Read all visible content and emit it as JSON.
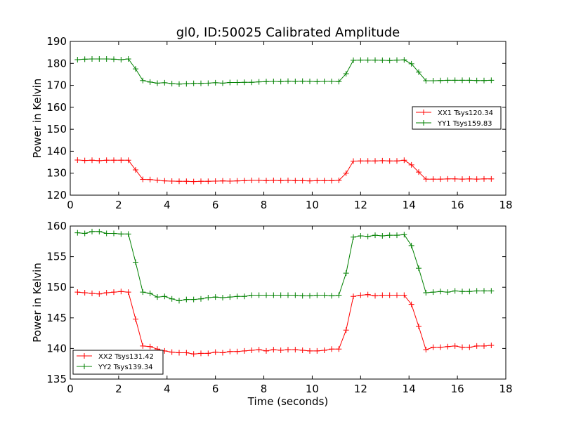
{
  "figure": {
    "title": "gl0, ID:50025 Calibrated Amplitude",
    "xlabel": "Time (seconds)"
  },
  "chart_data": [
    {
      "type": "line",
      "title": "gl0, ID:50025 Calibrated Amplitude",
      "xlabel": "",
      "ylabel": "Power in Kelvin",
      "xlim": [
        0,
        18
      ],
      "ylim": [
        120,
        190
      ],
      "xticks": [
        "0",
        "2",
        "4",
        "6",
        "8",
        "10",
        "12",
        "14",
        "16",
        "18"
      ],
      "yticks": [
        "120",
        "130",
        "140",
        "150",
        "160",
        "170",
        "180",
        "190"
      ],
      "grid": false,
      "legend_position": "center-right",
      "marker": "+",
      "x": [
        0.3,
        0.6,
        0.9,
        1.2,
        1.5,
        1.8,
        2.1,
        2.4,
        2.7,
        3.0,
        3.3,
        3.6,
        3.9,
        4.2,
        4.5,
        4.8,
        5.1,
        5.4,
        5.7,
        6.0,
        6.3,
        6.6,
        6.9,
        7.2,
        7.5,
        7.8,
        8.1,
        8.4,
        8.7,
        9.0,
        9.3,
        9.6,
        9.9,
        10.2,
        10.5,
        10.8,
        11.1,
        11.4,
        11.7,
        12.0,
        12.3,
        12.6,
        12.9,
        13.2,
        13.5,
        13.8,
        14.1,
        14.4,
        14.7,
        15.0,
        15.3,
        15.6,
        15.9,
        16.2,
        16.5,
        16.8,
        17.1,
        17.4
      ],
      "series": [
        {
          "name": "XX1 Tsys120.34",
          "color": "#ff0000",
          "values": [
            136.0,
            135.8,
            135.9,
            135.7,
            135.9,
            135.9,
            135.9,
            135.9,
            131.5,
            127.2,
            127.1,
            126.8,
            126.5,
            126.4,
            126.3,
            126.3,
            126.2,
            126.3,
            126.3,
            126.4,
            126.5,
            126.4,
            126.5,
            126.6,
            126.7,
            126.7,
            126.6,
            126.7,
            126.6,
            126.7,
            126.6,
            126.6,
            126.5,
            126.6,
            126.6,
            126.6,
            126.7,
            130.0,
            135.5,
            135.6,
            135.6,
            135.6,
            135.7,
            135.6,
            135.6,
            135.9,
            133.8,
            130.5,
            127.3,
            127.3,
            127.3,
            127.4,
            127.4,
            127.3,
            127.4,
            127.3,
            127.4,
            127.4
          ]
        },
        {
          "name": "YY1 Tsys159.83",
          "color": "#008000",
          "values": [
            181.7,
            181.9,
            182.0,
            182.0,
            182.0,
            181.9,
            181.7,
            182.0,
            177.5,
            172.2,
            171.5,
            171.0,
            171.2,
            170.8,
            170.6,
            170.7,
            170.9,
            170.9,
            171.0,
            171.2,
            171.0,
            171.3,
            171.3,
            171.4,
            171.4,
            171.6,
            171.7,
            171.8,
            171.7,
            171.9,
            171.8,
            171.9,
            171.8,
            171.7,
            171.8,
            171.8,
            171.7,
            175.3,
            181.4,
            181.5,
            181.5,
            181.5,
            181.4,
            181.3,
            181.5,
            181.6,
            179.8,
            176.0,
            172.1,
            172.1,
            172.2,
            172.3,
            172.3,
            172.3,
            172.3,
            172.2,
            172.2,
            172.3
          ]
        }
      ]
    },
    {
      "type": "line",
      "title": "",
      "xlabel": "Time (seconds)",
      "ylabel": "Power in Kelvin",
      "xlim": [
        0,
        18
      ],
      "ylim": [
        135,
        160
      ],
      "xticks": [
        "0",
        "2",
        "4",
        "6",
        "8",
        "10",
        "12",
        "14",
        "16",
        "18"
      ],
      "yticks": [
        "135",
        "140",
        "145",
        "150",
        "155",
        "160"
      ],
      "grid": false,
      "legend_position": "lower-left",
      "marker": "+",
      "x": [
        0.3,
        0.6,
        0.9,
        1.2,
        1.5,
        1.8,
        2.1,
        2.4,
        2.7,
        3.0,
        3.3,
        3.6,
        3.9,
        4.2,
        4.5,
        4.8,
        5.1,
        5.4,
        5.7,
        6.0,
        6.3,
        6.6,
        6.9,
        7.2,
        7.5,
        7.8,
        8.1,
        8.4,
        8.7,
        9.0,
        9.3,
        9.6,
        9.9,
        10.2,
        10.5,
        10.8,
        11.1,
        11.4,
        11.7,
        12.0,
        12.3,
        12.6,
        12.9,
        13.2,
        13.5,
        13.8,
        14.1,
        14.4,
        14.7,
        15.0,
        15.3,
        15.6,
        15.9,
        16.2,
        16.5,
        16.8,
        17.1,
        17.4
      ],
      "series": [
        {
          "name": "XX2 Tsys131.42",
          "color": "#ff0000",
          "values": [
            149.2,
            149.1,
            149.0,
            148.9,
            149.1,
            149.2,
            149.3,
            149.2,
            144.8,
            140.4,
            140.3,
            139.9,
            139.6,
            139.4,
            139.3,
            139.3,
            139.1,
            139.2,
            139.2,
            139.4,
            139.3,
            139.5,
            139.5,
            139.6,
            139.7,
            139.8,
            139.6,
            139.8,
            139.7,
            139.8,
            139.8,
            139.7,
            139.6,
            139.6,
            139.7,
            139.9,
            139.9,
            143.0,
            148.5,
            148.7,
            148.8,
            148.6,
            148.7,
            148.7,
            148.7,
            148.7,
            147.2,
            143.6,
            139.8,
            140.2,
            140.2,
            140.3,
            140.4,
            140.2,
            140.2,
            140.4,
            140.4,
            140.5
          ]
        },
        {
          "name": "YY2 Tsys139.34",
          "color": "#008000",
          "values": [
            158.9,
            158.8,
            159.1,
            159.1,
            158.8,
            158.8,
            158.7,
            158.7,
            154.1,
            149.2,
            149.0,
            148.4,
            148.5,
            148.1,
            147.8,
            148.0,
            148.0,
            148.1,
            148.3,
            148.4,
            148.3,
            148.4,
            148.5,
            148.5,
            148.7,
            148.7,
            148.7,
            148.7,
            148.7,
            148.7,
            148.7,
            148.6,
            148.6,
            148.7,
            148.7,
            148.6,
            148.7,
            152.3,
            158.2,
            158.4,
            158.3,
            158.5,
            158.4,
            158.5,
            158.5,
            158.6,
            156.8,
            153.1,
            149.1,
            149.2,
            149.3,
            149.2,
            149.4,
            149.3,
            149.3,
            149.4,
            149.4,
            149.4
          ]
        }
      ]
    }
  ]
}
